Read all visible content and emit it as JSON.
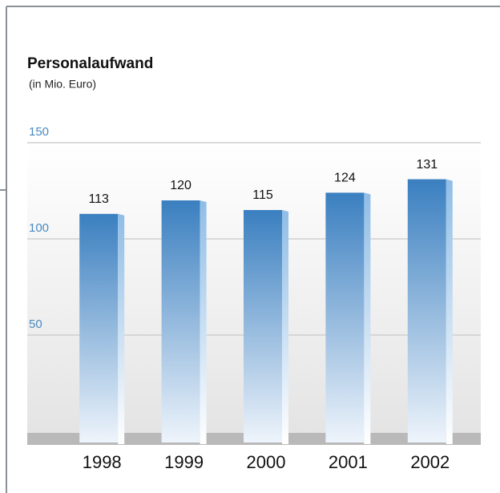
{
  "chart_data": {
    "type": "bar",
    "title": "Personalaufwand",
    "subtitle": "(in Mio. Euro)",
    "categories": [
      "1998",
      "1999",
      "2000",
      "2001",
      "2002"
    ],
    "values": [
      113,
      120,
      115,
      124,
      131
    ],
    "color": "#3a7fc0",
    "ylim": [
      0,
      150
    ],
    "yticks": [
      50,
      100,
      150
    ],
    "grid": true
  }
}
